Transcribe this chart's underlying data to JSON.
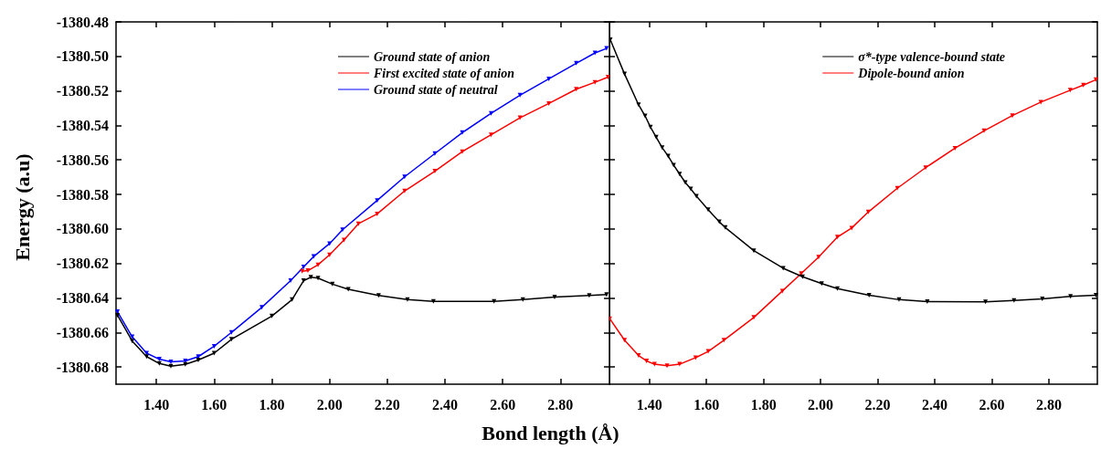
{
  "chart_data": [
    {
      "type": "line",
      "ylabel": "Energy (a.u)",
      "xlabel": "Bond length (Å)",
      "xlim": [
        1.26,
        2.97
      ],
      "ylim": [
        -1380.69,
        -1380.48
      ],
      "xticks": [
        {
          "value": 1.4,
          "label": "1.40"
        },
        {
          "value": 1.6,
          "label": "1.60"
        },
        {
          "value": 1.8,
          "label": "1.80"
        },
        {
          "value": 2.0,
          "label": "2.00"
        },
        {
          "value": 2.2,
          "label": "2.20"
        },
        {
          "value": 2.4,
          "label": "2.40"
        },
        {
          "value": 2.6,
          "label": "2.60"
        },
        {
          "value": 2.8,
          "label": "2.80"
        }
      ],
      "yticks": [
        {
          "value": -1380.68,
          "label": "-1380.68"
        },
        {
          "value": -1380.66,
          "label": "-1380.66"
        },
        {
          "value": -1380.64,
          "label": "-1380.64"
        },
        {
          "value": -1380.62,
          "label": "-1380.62"
        },
        {
          "value": -1380.6,
          "label": "-1380.60"
        },
        {
          "value": -1380.58,
          "label": "-1380.58"
        },
        {
          "value": -1380.56,
          "label": "-1380.56"
        },
        {
          "value": -1380.54,
          "label": "-1380.54"
        },
        {
          "value": -1380.52,
          "label": "-1380.52"
        },
        {
          "value": -1380.5,
          "label": "-1380.50"
        },
        {
          "value": -1380.48,
          "label": "-1380.48"
        }
      ],
      "grid": false,
      "legend": "top right",
      "marker": "triangle",
      "line_style": "solid",
      "series": [
        {
          "name": "Ground state of anion",
          "color": "#000000",
          "x": [
            1.265,
            1.316,
            1.366,
            1.41,
            1.45,
            1.5,
            1.545,
            1.6,
            1.66,
            1.8,
            1.87,
            1.91,
            1.935,
            1.96,
            2.01,
            2.065,
            2.17,
            2.27,
            2.36,
            2.57,
            2.67,
            2.78,
            2.9,
            2.96
          ],
          "values": [
            -1380.65,
            -1380.665,
            -1380.674,
            -1380.678,
            -1380.6795,
            -1380.6785,
            -1380.676,
            -1380.672,
            -1380.664,
            -1380.6505,
            -1380.641,
            -1380.63,
            -1380.628,
            -1380.6285,
            -1380.632,
            -1380.635,
            -1380.6385,
            -1380.641,
            -1380.642,
            -1380.642,
            -1380.641,
            -1380.6395,
            -1380.6385,
            -1380.638
          ]
        },
        {
          "name": "First excited state of anion",
          "color": "#ff0000",
          "x": [
            1.905,
            1.925,
            1.96,
            2.0,
            2.05,
            2.1,
            2.165,
            2.26,
            2.365,
            2.46,
            2.56,
            2.66,
            2.76,
            2.855,
            2.92,
            2.965
          ],
          "values": [
            -1380.6246,
            -1380.6242,
            -1380.6208,
            -1380.615,
            -1380.6064,
            -1380.597,
            -1380.5913,
            -1380.578,
            -1380.5665,
            -1380.5552,
            -1380.5454,
            -1380.5356,
            -1380.5273,
            -1380.519,
            -1380.515,
            -1380.512
          ]
        },
        {
          "name": "Ground state of neutral",
          "color": "#0000ff",
          "x": [
            1.265,
            1.316,
            1.366,
            1.41,
            1.45,
            1.5,
            1.545,
            1.6,
            1.66,
            1.765,
            1.865,
            1.91,
            1.945,
            2.0,
            2.045,
            2.165,
            2.26,
            2.365,
            2.46,
            2.56,
            2.66,
            2.76,
            2.855,
            2.92,
            2.96
          ],
          "values": [
            -1380.648,
            -1380.6625,
            -1380.672,
            -1380.6755,
            -1380.677,
            -1380.6765,
            -1380.674,
            -1380.668,
            -1380.66,
            -1380.6455,
            -1380.63,
            -1380.622,
            -1380.616,
            -1380.6085,
            -1380.6005,
            -1380.5835,
            -1380.5698,
            -1380.5563,
            -1380.5442,
            -1380.533,
            -1380.5225,
            -1380.513,
            -1380.504,
            -1380.498,
            -1380.4954
          ]
        }
      ]
    },
    {
      "type": "line",
      "xlim": [
        1.26,
        2.97
      ],
      "ylim": [
        -1380.69,
        -1380.48
      ],
      "tick_labels": "x",
      "xticks": [
        {
          "value": 1.4,
          "label": "1.40"
        },
        {
          "value": 1.6,
          "label": "1.60"
        },
        {
          "value": 1.8,
          "label": "1.80"
        },
        {
          "value": 2.0,
          "label": "2.00"
        },
        {
          "value": 2.2,
          "label": "2.20"
        },
        {
          "value": 2.4,
          "label": "2.40"
        },
        {
          "value": 2.6,
          "label": "2.60"
        },
        {
          "value": 2.8,
          "label": "2.80"
        }
      ],
      "yticks": [
        {
          "value": -1380.68,
          "label": null
        },
        {
          "value": -1380.66,
          "label": null
        },
        {
          "value": -1380.64,
          "label": null
        },
        {
          "value": -1380.62,
          "label": null
        },
        {
          "value": -1380.6,
          "label": null
        },
        {
          "value": -1380.58,
          "label": null
        },
        {
          "value": -1380.56,
          "label": null
        },
        {
          "value": -1380.54,
          "label": null
        },
        {
          "value": -1380.52,
          "label": null
        },
        {
          "value": -1380.5,
          "label": null
        },
        {
          "value": -1380.48,
          "label": null
        }
      ],
      "grid": false,
      "legend": "top right",
      "marker": "triangle",
      "line_style": "solid",
      "series": [
        {
          "name": "σ*-type valence-bound state",
          "color": "#000000",
          "x": [
            1.263,
            1.313,
            1.362,
            1.385,
            1.404,
            1.424,
            1.445,
            1.466,
            1.485,
            1.506,
            1.526,
            1.545,
            1.565,
            1.606,
            1.645,
            1.666,
            1.766,
            1.869,
            1.937,
            2.004,
            2.059,
            2.17,
            2.275,
            2.374,
            2.578,
            2.678,
            2.777,
            2.876,
            2.965
          ],
          "values": [
            -1380.4903,
            -1380.5102,
            -1380.528,
            -1380.5345,
            -1380.541,
            -1380.5468,
            -1380.5529,
            -1380.5578,
            -1380.563,
            -1380.5682,
            -1380.5731,
            -1380.5768,
            -1380.581,
            -1380.5888,
            -1380.5959,
            -1380.5992,
            -1380.6126,
            -1380.6228,
            -1380.6277,
            -1380.6317,
            -1380.6346,
            -1380.6384,
            -1380.641,
            -1380.6421,
            -1380.6423,
            -1380.6415,
            -1380.6406,
            -1380.6391,
            -1380.6384
          ]
        },
        {
          "name": "Dipole-bound anion",
          "color": "#ff0000",
          "x": [
            1.261,
            1.313,
            1.362,
            1.39,
            1.418,
            1.462,
            1.506,
            1.562,
            1.606,
            1.661,
            1.766,
            1.866,
            1.932,
            1.993,
            2.059,
            2.109,
            2.167,
            2.269,
            2.368,
            2.471,
            2.573,
            2.672,
            2.772,
            2.875,
            2.921,
            2.965
          ],
          "values": [
            -1380.652,
            -1380.6645,
            -1380.6734,
            -1380.6765,
            -1380.6784,
            -1380.6793,
            -1380.6784,
            -1380.6746,
            -1380.671,
            -1380.6645,
            -1380.6513,
            -1380.636,
            -1380.6259,
            -1380.6163,
            -1380.6047,
            -1380.5995,
            -1380.5902,
            -1380.5764,
            -1380.5645,
            -1380.5532,
            -1380.5431,
            -1380.5343,
            -1380.5265,
            -1380.5196,
            -1380.5166,
            -1380.5135
          ]
        }
      ]
    }
  ]
}
